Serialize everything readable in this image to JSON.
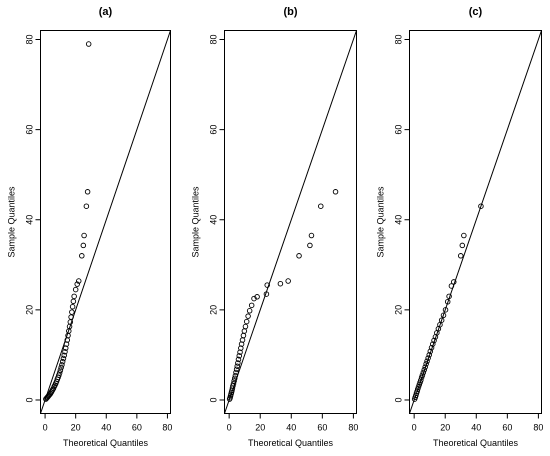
{
  "chart_data": [
    {
      "type": "scatter",
      "title": "(a)",
      "xlabel": "Theoretical Quantiles",
      "ylabel": "Sample Quantiles",
      "xticks": [
        0,
        20,
        40,
        60,
        80
      ],
      "yticks": [
        0,
        20,
        40,
        60,
        80
      ],
      "xlim": [
        -3,
        82
      ],
      "ylim": [
        -3,
        82
      ],
      "reference_line": {
        "slope": 1,
        "intercept": 0
      },
      "points": [
        [
          0.5,
          0.2
        ],
        [
          1,
          0.4
        ],
        [
          1.5,
          0.6
        ],
        [
          2,
          0.8
        ],
        [
          2.5,
          1.0
        ],
        [
          3,
          1.2
        ],
        [
          3.5,
          1.4
        ],
        [
          4,
          1.7
        ],
        [
          4.5,
          2.0
        ],
        [
          5,
          2.3
        ],
        [
          5.5,
          2.6
        ],
        [
          6,
          3.0
        ],
        [
          6.5,
          3.3
        ],
        [
          7,
          3.7
        ],
        [
          7.5,
          4.1
        ],
        [
          8,
          4.6
        ],
        [
          8.5,
          5.0
        ],
        [
          9,
          5.5
        ],
        [
          9.5,
          6.0
        ],
        [
          10,
          6.6
        ],
        [
          10.5,
          7.2
        ],
        [
          11,
          7.8
        ],
        [
          11.5,
          8.5
        ],
        [
          12,
          9.2
        ],
        [
          12.5,
          9.9
        ],
        [
          13,
          10.7
        ],
        [
          13.5,
          11.5
        ],
        [
          14,
          12.4
        ],
        [
          14.5,
          13.3
        ],
        [
          15,
          14.3
        ],
        [
          15.5,
          15.3
        ],
        [
          16,
          16.3
        ],
        [
          16.5,
          17.3
        ],
        [
          17,
          18.4
        ],
        [
          17.5,
          19.5
        ],
        [
          18,
          20.7
        ],
        [
          18.5,
          21.9
        ],
        [
          19,
          23.0
        ],
        [
          20,
          24.5
        ],
        [
          21,
          25.7
        ],
        [
          22,
          26.4
        ],
        [
          24,
          32.0
        ],
        [
          25,
          34.3
        ],
        [
          25.5,
          36.5
        ],
        [
          27,
          43.0
        ],
        [
          27.8,
          46.2
        ],
        [
          28.5,
          79.0
        ]
      ]
    },
    {
      "type": "scatter",
      "title": "(b)",
      "xlabel": "Theoretical Quantiles",
      "ylabel": "Sample Quantiles",
      "xticks": [
        0,
        20,
        40,
        60,
        80
      ],
      "yticks": [
        0,
        20,
        40,
        60,
        80
      ],
      "xlim": [
        -3,
        82
      ],
      "ylim": [
        -3,
        82
      ],
      "reference_line": {
        "slope": 1,
        "intercept": 0
      },
      "points": [
        [
          0.3,
          0.2
        ],
        [
          0.6,
          0.5
        ],
        [
          0.9,
          0.9
        ],
        [
          1.2,
          1.3
        ],
        [
          1.5,
          1.7
        ],
        [
          1.8,
          2.1
        ],
        [
          2.1,
          2.6
        ],
        [
          2.4,
          3.1
        ],
        [
          2.8,
          3.6
        ],
        [
          3.2,
          4.2
        ],
        [
          3.6,
          4.8
        ],
        [
          4.0,
          5.4
        ],
        [
          4.4,
          6.1
        ],
        [
          4.8,
          6.8
        ],
        [
          5.2,
          7.5
        ],
        [
          5.6,
          8.2
        ],
        [
          6.0,
          9.0
        ],
        [
          6.5,
          9.8
        ],
        [
          7.0,
          10.6
        ],
        [
          7.5,
          11.5
        ],
        [
          8.0,
          12.4
        ],
        [
          8.6,
          13.3
        ],
        [
          9.2,
          14.3
        ],
        [
          9.8,
          15.3
        ],
        [
          10.5,
          16.3
        ],
        [
          11.3,
          17.4
        ],
        [
          12.2,
          18.6
        ],
        [
          13.2,
          19.8
        ],
        [
          14.5,
          21.0
        ],
        [
          16,
          22.5
        ],
        [
          18,
          22.9
        ],
        [
          24,
          23.5
        ],
        [
          24.5,
          25.5
        ],
        [
          33,
          25.8
        ],
        [
          38,
          26.4
        ],
        [
          45,
          32.0
        ],
        [
          52,
          34.3
        ],
        [
          53,
          36.5
        ],
        [
          59,
          43.0
        ],
        [
          68.5,
          46.2
        ]
      ]
    },
    {
      "type": "scatter",
      "title": "(c)",
      "xlabel": "Theoretical Quantiles",
      "ylabel": "Sample Quantiles",
      "xticks": [
        0,
        20,
        40,
        60,
        80
      ],
      "yticks": [
        0,
        20,
        40,
        60,
        80
      ],
      "xlim": [
        -3,
        82
      ],
      "ylim": [
        -3,
        82
      ],
      "reference_line": {
        "slope": 1,
        "intercept": 0
      },
      "points": [
        [
          0.3,
          0.2
        ],
        [
          0.7,
          0.6
        ],
        [
          1.1,
          1.0
        ],
        [
          1.5,
          1.5
        ],
        [
          1.9,
          1.9
        ],
        [
          2.3,
          2.4
        ],
        [
          2.8,
          2.9
        ],
        [
          3.3,
          3.4
        ],
        [
          3.8,
          3.9
        ],
        [
          4.3,
          4.4
        ],
        [
          4.8,
          5.0
        ],
        [
          5.3,
          5.5
        ],
        [
          5.9,
          6.1
        ],
        [
          6.5,
          6.7
        ],
        [
          7.1,
          7.3
        ],
        [
          7.7,
          8.0
        ],
        [
          8.3,
          8.6
        ],
        [
          9.0,
          9.3
        ],
        [
          9.7,
          10.0
        ],
        [
          10.4,
          10.8
        ],
        [
          11.2,
          11.6
        ],
        [
          12.0,
          12.4
        ],
        [
          12.8,
          13.2
        ],
        [
          13.7,
          14.0
        ],
        [
          14.6,
          14.9
        ],
        [
          15.6,
          15.8
        ],
        [
          16.6,
          16.7
        ],
        [
          17.7,
          17.7
        ],
        [
          18.9,
          18.8
        ],
        [
          20.2,
          20.0
        ],
        [
          21.6,
          21.8
        ],
        [
          22.5,
          23.0
        ],
        [
          24,
          25.3
        ],
        [
          25.5,
          26.2
        ],
        [
          30,
          32.0
        ],
        [
          31,
          34.3
        ],
        [
          32,
          36.5
        ],
        [
          43,
          43.0
        ]
      ]
    }
  ]
}
